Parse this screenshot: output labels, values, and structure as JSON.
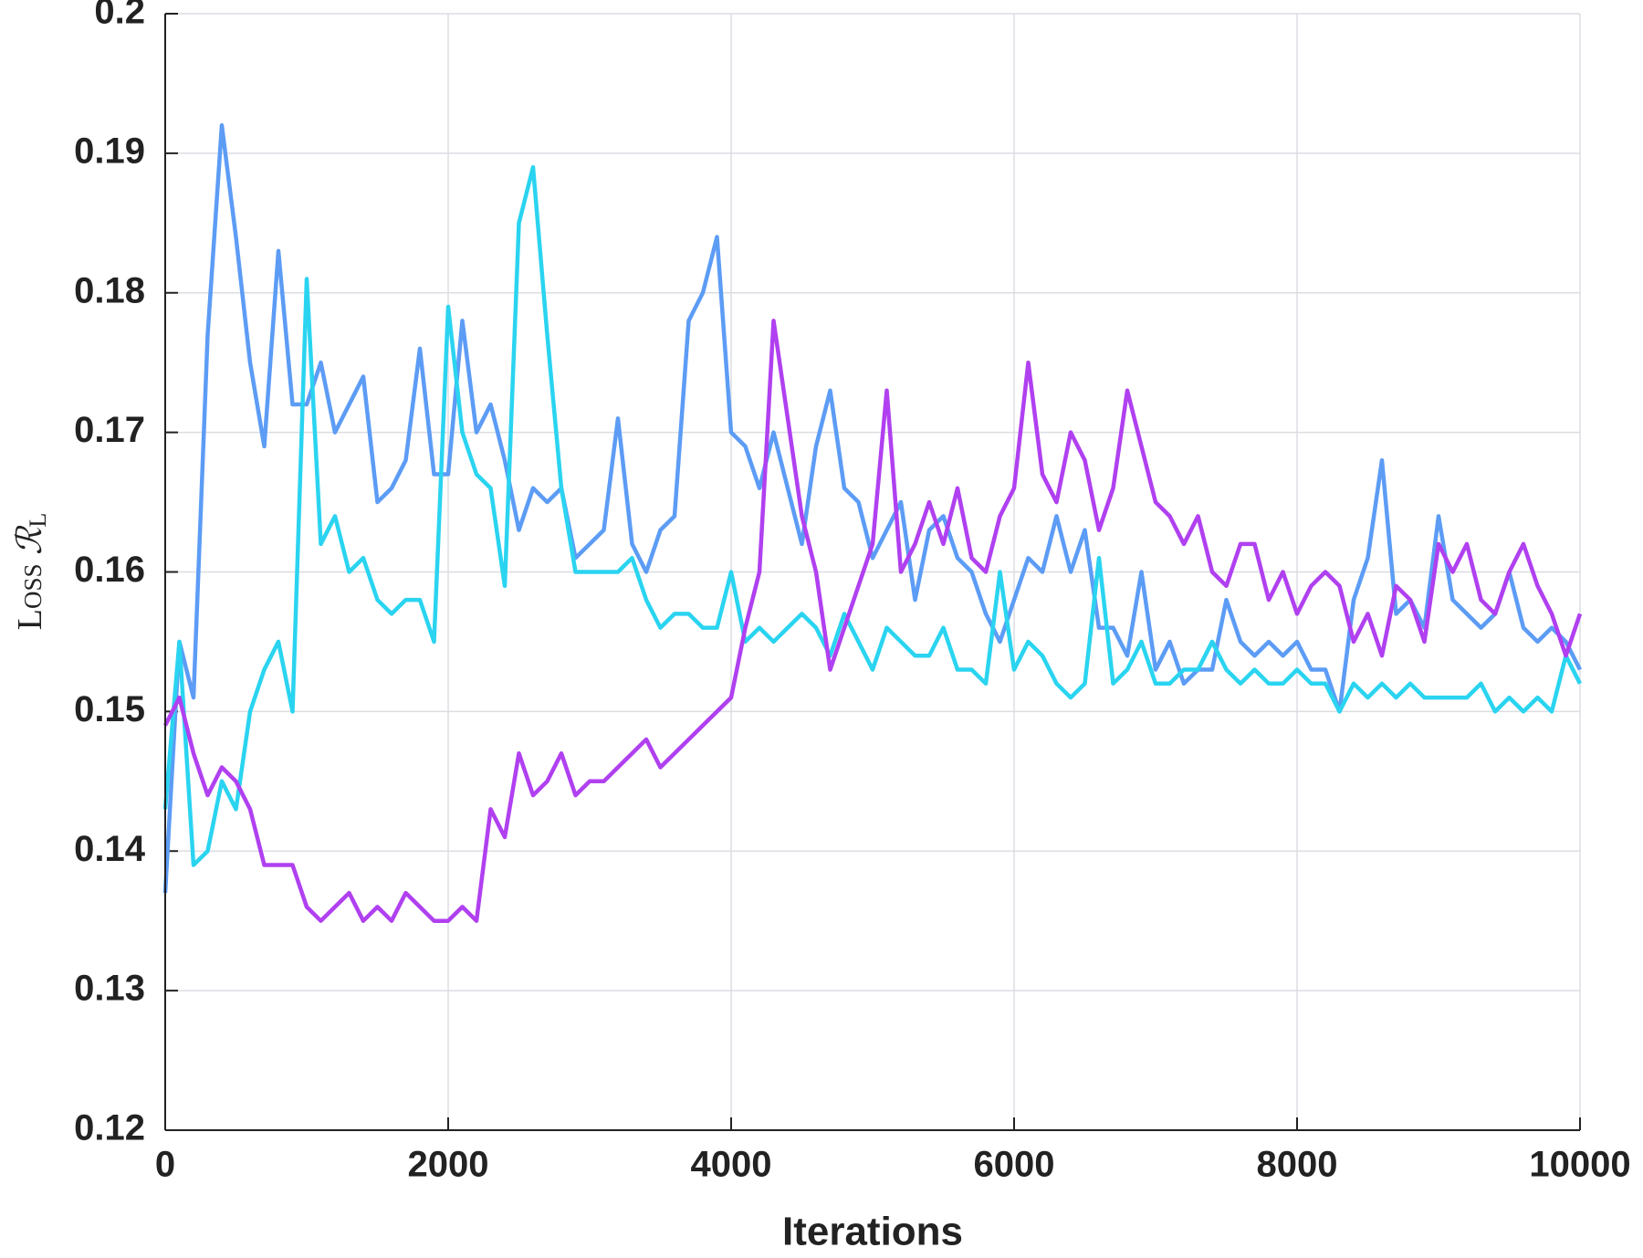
{
  "chart_data": {
    "type": "line",
    "xlabel": "Iterations",
    "ylabel": "Loss",
    "ylabel_symbol": "ℛ",
    "ylabel_sub": "L",
    "xlim": [
      0,
      10000
    ],
    "ylim": [
      0.12,
      0.2
    ],
    "xticks": [
      0,
      2000,
      4000,
      6000,
      8000,
      10000
    ],
    "yticks": [
      0.12,
      0.13,
      0.14,
      0.15,
      0.16,
      0.17,
      0.18,
      0.19,
      0.2
    ],
    "grid": true,
    "x": [
      0,
      100,
      200,
      300,
      400,
      500,
      600,
      700,
      800,
      900,
      1000,
      1100,
      1200,
      1300,
      1400,
      1500,
      1600,
      1700,
      1800,
      1900,
      2000,
      2100,
      2200,
      2300,
      2400,
      2500,
      2600,
      2700,
      2800,
      2900,
      3000,
      3100,
      3200,
      3300,
      3400,
      3500,
      3600,
      3700,
      3800,
      3900,
      4000,
      4100,
      4200,
      4300,
      4400,
      4500,
      4600,
      4700,
      4800,
      4900,
      5000,
      5100,
      5200,
      5300,
      5400,
      5500,
      5600,
      5700,
      5800,
      5900,
      6000,
      6100,
      6200,
      6300,
      6400,
      6500,
      6600,
      6700,
      6800,
      6900,
      7000,
      7100,
      7200,
      7300,
      7400,
      7500,
      7600,
      7700,
      7800,
      7900,
      8000,
      8100,
      8200,
      8300,
      8400,
      8500,
      8600,
      8700,
      8800,
      8900,
      9000,
      9100,
      9200,
      9300,
      9400,
      9500,
      9600,
      9700,
      9800,
      9900,
      10000
    ],
    "series": [
      {
        "color": "#5c9cf5",
        "values": [
          0.137,
          0.155,
          0.151,
          0.177,
          0.192,
          0.184,
          0.175,
          0.169,
          0.183,
          0.172,
          0.172,
          0.175,
          0.17,
          0.172,
          0.174,
          0.165,
          0.166,
          0.168,
          0.176,
          0.167,
          0.167,
          0.178,
          0.17,
          0.172,
          0.168,
          0.163,
          0.166,
          0.165,
          0.166,
          0.161,
          0.162,
          0.163,
          0.171,
          0.162,
          0.16,
          0.163,
          0.164,
          0.178,
          0.18,
          0.184,
          0.17,
          0.169,
          0.166,
          0.17,
          0.166,
          0.162,
          0.169,
          0.173,
          0.166,
          0.165,
          0.161,
          0.163,
          0.165,
          0.158,
          0.163,
          0.164,
          0.161,
          0.16,
          0.157,
          0.155,
          0.158,
          0.161,
          0.16,
          0.164,
          0.16,
          0.163,
          0.156,
          0.156,
          0.154,
          0.16,
          0.153,
          0.155,
          0.152,
          0.153,
          0.153,
          0.158,
          0.155,
          0.154,
          0.155,
          0.154,
          0.155,
          0.153,
          0.153,
          0.15,
          0.158,
          0.161,
          0.168,
          0.157,
          0.158,
          0.156,
          0.164,
          0.158,
          0.157,
          0.156,
          0.157,
          0.16,
          0.156,
          0.155,
          0.156,
          0.155,
          0.153
        ]
      },
      {
        "color": "#2ad4f0",
        "values": [
          0.143,
          0.155,
          0.139,
          0.14,
          0.145,
          0.143,
          0.15,
          0.153,
          0.155,
          0.15,
          0.181,
          0.162,
          0.164,
          0.16,
          0.161,
          0.158,
          0.157,
          0.158,
          0.158,
          0.155,
          0.179,
          0.17,
          0.167,
          0.166,
          0.159,
          0.185,
          0.189,
          0.177,
          0.166,
          0.16,
          0.16,
          0.16,
          0.16,
          0.161,
          0.158,
          0.156,
          0.157,
          0.157,
          0.156,
          0.156,
          0.16,
          0.155,
          0.156,
          0.155,
          0.156,
          0.157,
          0.156,
          0.154,
          0.157,
          0.155,
          0.153,
          0.156,
          0.155,
          0.154,
          0.154,
          0.156,
          0.153,
          0.153,
          0.152,
          0.16,
          0.153,
          0.155,
          0.154,
          0.152,
          0.151,
          0.152,
          0.161,
          0.152,
          0.153,
          0.155,
          0.152,
          0.152,
          0.153,
          0.153,
          0.155,
          0.153,
          0.152,
          0.153,
          0.152,
          0.152,
          0.153,
          0.152,
          0.152,
          0.15,
          0.152,
          0.151,
          0.152,
          0.151,
          0.152,
          0.151,
          0.151,
          0.151,
          0.151,
          0.152,
          0.15,
          0.151,
          0.15,
          0.151,
          0.15,
          0.154,
          0.152
        ]
      },
      {
        "color": "#b040f0",
        "values": [
          0.149,
          0.151,
          0.147,
          0.144,
          0.146,
          0.145,
          0.143,
          0.139,
          0.139,
          0.139,
          0.136,
          0.135,
          0.136,
          0.137,
          0.135,
          0.136,
          0.135,
          0.137,
          0.136,
          0.135,
          0.135,
          0.136,
          0.135,
          0.143,
          0.141,
          0.147,
          0.144,
          0.145,
          0.147,
          0.144,
          0.145,
          0.145,
          0.146,
          0.147,
          0.148,
          0.146,
          0.147,
          0.148,
          0.149,
          0.15,
          0.151,
          0.156,
          0.16,
          0.178,
          0.171,
          0.164,
          0.16,
          0.153,
          0.156,
          0.159,
          0.162,
          0.173,
          0.16,
          0.162,
          0.165,
          0.162,
          0.166,
          0.161,
          0.16,
          0.164,
          0.166,
          0.175,
          0.167,
          0.165,
          0.17,
          0.168,
          0.163,
          0.166,
          0.173,
          0.169,
          0.165,
          0.164,
          0.162,
          0.164,
          0.16,
          0.159,
          0.162,
          0.162,
          0.158,
          0.16,
          0.157,
          0.159,
          0.16,
          0.159,
          0.155,
          0.157,
          0.154,
          0.159,
          0.158,
          0.155,
          0.162,
          0.16,
          0.162,
          0.158,
          0.157,
          0.16,
          0.162,
          0.159,
          0.157,
          0.154,
          0.157
        ]
      }
    ]
  }
}
